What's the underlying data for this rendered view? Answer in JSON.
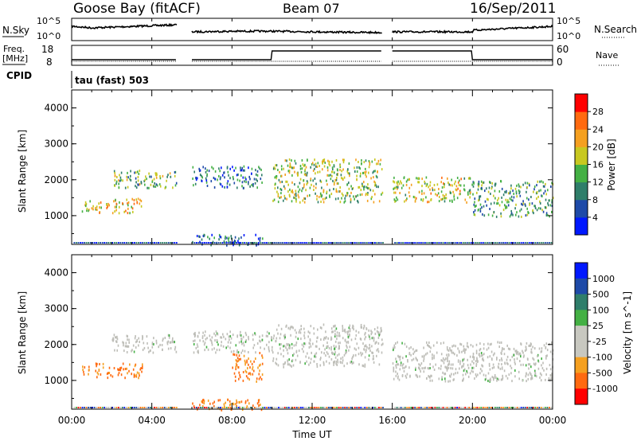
{
  "header": {
    "station": "Goose Bay (fitACF)",
    "beam": "Beam 07",
    "date": "16/Sep/2011"
  },
  "side_labels": {
    "nsky": "N.Sky",
    "nsearch": "N.Search",
    "freq": "Freq.",
    "freq_unit": "[MHz]",
    "nave": "Nave",
    "cpid": "CPID",
    "program": "tau (fast) 503"
  },
  "noise_panel": {
    "left_ticks": [
      "10^5",
      "10^0"
    ],
    "right_ticks": [
      "10^5",
      "10^0"
    ]
  },
  "freq_panel": {
    "left_ticks": [
      "18",
      "8"
    ],
    "right_ticks": [
      "60",
      "0"
    ]
  },
  "colors": {
    "power": [
      "#0018ff",
      "#1e4aa8",
      "#2f7e6a",
      "#44b044",
      "#c8c820",
      "#f5a020",
      "#ff6a10",
      "#ff0000"
    ],
    "velocity": [
      "#ff0000",
      "#ff6a10",
      "#f5a020",
      "#c8c8c0",
      "#c8c8c0",
      "#44b044",
      "#2f7e6a",
      "#1e4aa8",
      "#0018ff"
    ],
    "ground_scatter": "#bebeb8"
  },
  "chart_data": [
    {
      "type": "heatmap",
      "name": "power",
      "ylabel": "Slant Range [km]",
      "yticks": [
        "1000",
        "2000",
        "3000",
        "4000"
      ],
      "ylim": [
        200,
        4500
      ],
      "xlim_hours": [
        0,
        24
      ],
      "colorbar_label": "Power [dB]",
      "colorbar_ticks": [
        "4",
        "8",
        "12",
        "16",
        "20",
        "24",
        "28"
      ],
      "colorbar_range": [
        0,
        32
      ],
      "data_gaps_ut": [
        [
          "05:15",
          "06:00"
        ],
        [
          "15:30",
          "16:00"
        ]
      ],
      "echo_regions": [
        {
          "time": [
            "00:30",
            "03:30"
          ],
          "range_km": [
            1100,
            1500
          ],
          "power_db": 20
        },
        {
          "time": [
            "02:00",
            "05:15"
          ],
          "range_km": [
            1800,
            2300
          ],
          "power_db": 14
        },
        {
          "time": [
            "06:00",
            "09:30"
          ],
          "range_km": [
            1800,
            2400
          ],
          "power_db": 8
        },
        {
          "time": [
            "10:00",
            "15:30"
          ],
          "range_km": [
            1400,
            2600
          ],
          "power_db": 16
        },
        {
          "time": [
            "16:00",
            "20:00"
          ],
          "range_km": [
            1400,
            2100
          ],
          "power_db": 18
        },
        {
          "time": [
            "20:00",
            "24:00"
          ],
          "range_km": [
            1000,
            2000
          ],
          "power_db": 12
        },
        {
          "time": [
            "06:00",
            "09:30"
          ],
          "range_km": [
            200,
            500
          ],
          "power_db": 8
        }
      ]
    },
    {
      "type": "heatmap",
      "name": "velocity",
      "ylabel": "Slant Range [km]",
      "yticks": [
        "1000",
        "2000",
        "3000",
        "4000"
      ],
      "ylim": [
        200,
        4500
      ],
      "xlim_hours": [
        0,
        24
      ],
      "colorbar_label": "Velocity [m s^-1]",
      "colorbar_ticks": [
        "1000",
        "500",
        "100",
        "25",
        "-25",
        "-100",
        "-500",
        "-1000"
      ],
      "xlabel": "Time UT",
      "xticks": [
        "00:00",
        "04:00",
        "08:00",
        "12:00",
        "16:00",
        "20:00",
        "00:00"
      ],
      "data_gaps_ut": [
        [
          "05:15",
          "06:00"
        ],
        [
          "15:30",
          "16:00"
        ]
      ],
      "echo_regions": [
        {
          "time": [
            "00:30",
            "03:30"
          ],
          "range_km": [
            1100,
            1500
          ],
          "velocity": "-300"
        },
        {
          "time": [
            "02:00",
            "05:15"
          ],
          "range_km": [
            1800,
            2300
          ],
          "velocity": "ground scatter"
        },
        {
          "time": [
            "06:00",
            "10:00"
          ],
          "range_km": [
            1800,
            2400
          ],
          "velocity": "ground scatter"
        },
        {
          "time": [
            "10:00",
            "15:30"
          ],
          "range_km": [
            1400,
            2600
          ],
          "velocity": "ground scatter"
        },
        {
          "time": [
            "16:00",
            "24:00"
          ],
          "range_km": [
            1000,
            2100
          ],
          "velocity": "ground scatter"
        },
        {
          "time": [
            "08:00",
            "09:30"
          ],
          "range_km": [
            1000,
            1800
          ],
          "velocity": "-300"
        },
        {
          "time": [
            "06:00",
            "09:30"
          ],
          "range_km": [
            200,
            500
          ],
          "velocity": "-100"
        }
      ]
    }
  ]
}
